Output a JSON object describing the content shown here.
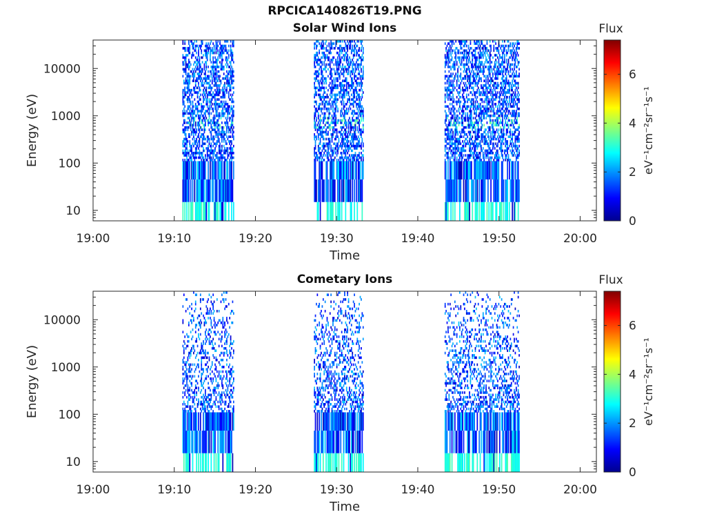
{
  "figure_title": "RPCICA140826T19.PNG",
  "chart_data": [
    {
      "type": "heatmap",
      "title": "Solar Wind Ions",
      "xlabel": "Time",
      "ylabel": "Energy (eV)",
      "x_ticks": [
        "19:00",
        "19:10",
        "19:20",
        "19:30",
        "19:40",
        "19:50",
        "20:00"
      ],
      "y_ticks": [
        "10",
        "100",
        "1000",
        "10000"
      ],
      "yscale": "log",
      "ylim": [
        6,
        40000
      ],
      "xlim": [
        "19:00",
        "20:02"
      ],
      "colorbar": {
        "label": "Flux",
        "unit": "eV⁻¹cm⁻²sr⁻¹s⁻¹",
        "ticks": [
          "0",
          "2",
          "4",
          "6"
        ],
        "range": [
          0,
          7.4
        ],
        "colormap": "jet"
      },
      "active_intervals": [
        [
          "19:11",
          "19:17.3"
        ],
        [
          "19:27.2",
          "19:33.2"
        ],
        [
          "19:43.3",
          "19:52.5"
        ]
      ],
      "typical_flux": "1-2.5, peaks near 3.5 around 700 eV",
      "density": "high"
    },
    {
      "type": "heatmap",
      "title": "Cometary Ions",
      "xlabel": "Time",
      "ylabel": "Energy (eV)",
      "x_ticks": [
        "19:00",
        "19:10",
        "19:20",
        "19:30",
        "19:40",
        "19:50",
        "20:00"
      ],
      "y_ticks": [
        "10",
        "100",
        "1000",
        "10000"
      ],
      "yscale": "log",
      "ylim": [
        6,
        40000
      ],
      "xlim": [
        "19:00",
        "20:02"
      ],
      "colorbar": {
        "label": "Flux",
        "unit": "eV⁻¹cm⁻²sr⁻¹s⁻¹",
        "ticks": [
          "0",
          "2",
          "4",
          "6"
        ],
        "range": [
          0,
          7.4
        ],
        "colormap": "jet"
      },
      "active_intervals": [
        [
          "19:11",
          "19:17.3"
        ],
        [
          "19:27.2",
          "19:33.2"
        ],
        [
          "19:43.3",
          "19:52.5"
        ]
      ],
      "typical_flux": "1-2.5, sparse above 1000 eV",
      "density": "sparse"
    }
  ]
}
